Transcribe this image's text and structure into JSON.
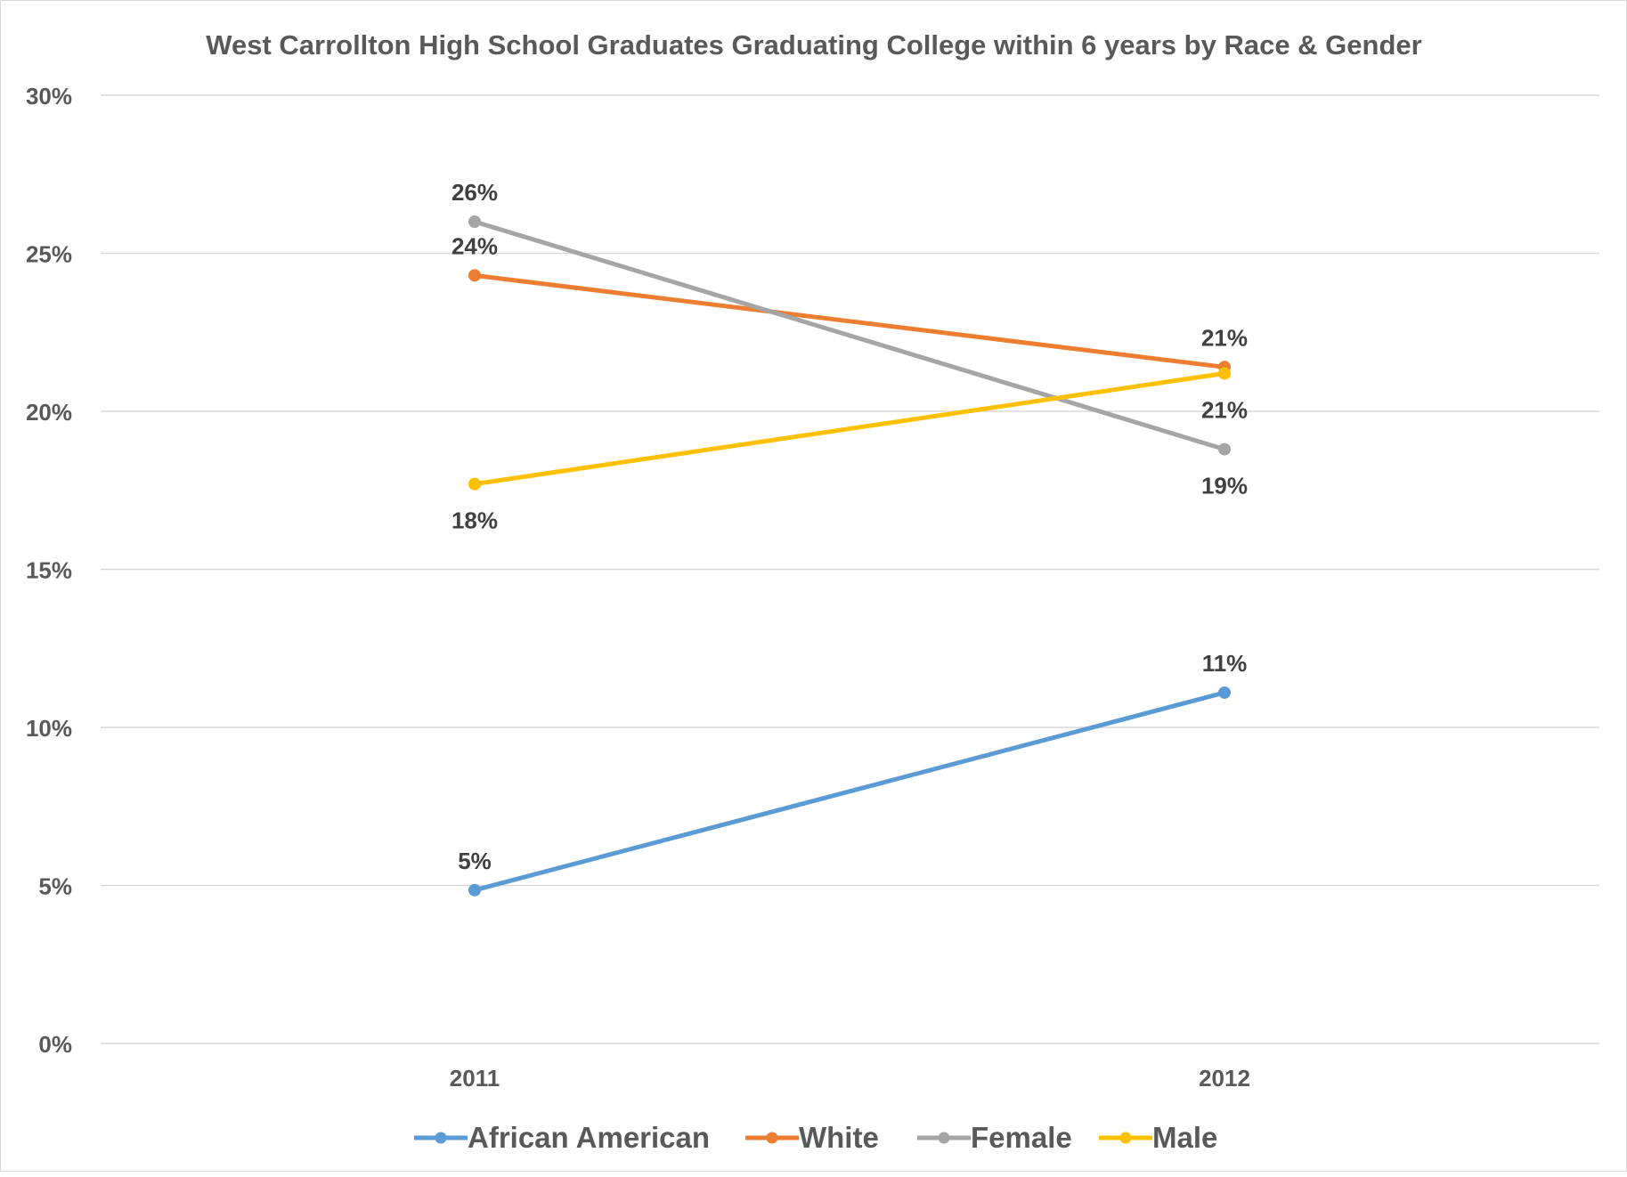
{
  "chart_data": {
    "type": "line",
    "title": "West Carrollton High School Graduates Graduating College within 6 years by Race & Gender",
    "xlabel": "",
    "ylabel": "",
    "categories": [
      "2011",
      "2012"
    ],
    "ylim": [
      0,
      30
    ],
    "yticks": [
      0,
      5,
      10,
      15,
      20,
      25,
      30
    ],
    "ytick_labels": [
      "0%",
      "5%",
      "10%",
      "15%",
      "20%",
      "25%",
      "30%"
    ],
    "grid": true,
    "legend_position": "bottom",
    "series": [
      {
        "name": "African American",
        "color": "#5B9BD5",
        "values": [
          4.85,
          11.1
        ],
        "labels": [
          "5%",
          "11%"
        ],
        "label_pos": [
          "above",
          "above"
        ]
      },
      {
        "name": "White",
        "color": "#ED7D31",
        "values": [
          24.3,
          21.4
        ],
        "labels": [
          "24%",
          "21%"
        ],
        "label_pos": [
          "above",
          "above"
        ]
      },
      {
        "name": "Female",
        "color": "#A5A5A5",
        "values": [
          26.0,
          18.8
        ],
        "labels": [
          "26%",
          "19%"
        ],
        "label_pos": [
          "above",
          "below"
        ]
      },
      {
        "name": "Male",
        "color": "#FFC000",
        "values": [
          17.7,
          21.2
        ],
        "labels": [
          "18%",
          "21%"
        ],
        "label_pos": [
          "below",
          "below"
        ]
      }
    ]
  }
}
